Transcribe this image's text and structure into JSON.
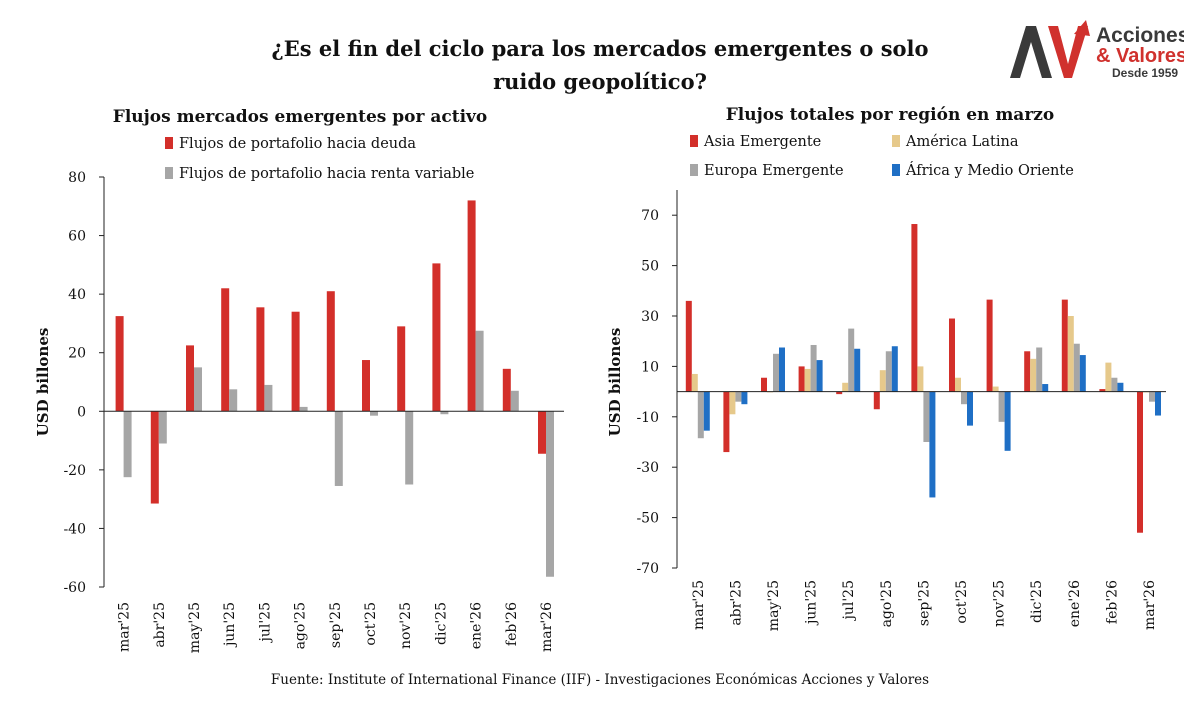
{
  "title": "¿Es el fin del ciclo para los mercados emergentes o solo ruido geopolítico?",
  "title_line1": "¿Es el fin del ciclo para los mercados emergentes o solo",
  "title_line2": "ruido geopolítico?",
  "logo": {
    "initials": "AV",
    "line1": "Acciones",
    "line2": "& Valores",
    "line3": "Desde 1959",
    "colors": {
      "dark": "#3a3a3a",
      "red": "#d0312d"
    }
  },
  "source": "Fuente: Institute of International Finance (IIF) - Investigaciones Económicas Acciones y Valores",
  "chart_data": [
    {
      "type": "bar",
      "title": "Flujos mercados emergentes por activo",
      "ylabel": "USD billones",
      "xlabel": "",
      "ylim": [
        -60,
        80
      ],
      "yticks": [
        80,
        60,
        40,
        20,
        0,
        -20,
        -40,
        -60
      ],
      "ytick_labels": [
        "80",
        "60",
        "40",
        "20",
        "0",
        "-20",
        "-40",
        "-60"
      ],
      "categories": [
        "mar'25",
        "abr'25",
        "may'25",
        "jun'25",
        "jul'25",
        "ago'25",
        "sep'25",
        "oct'25",
        "nov'25",
        "dic'25",
        "ene'26",
        "feb'26",
        "mar'26"
      ],
      "legend_position": "top",
      "grid": false,
      "series": [
        {
          "name": "Flujos de portafolio hacia deuda",
          "color": "#d32f2a",
          "values": [
            32.5,
            -31.5,
            22.5,
            42,
            35.5,
            34,
            41,
            17.5,
            29,
            50.5,
            72,
            14.5,
            -14.5
          ]
        },
        {
          "name": "Flujos de portafolio hacia renta variable",
          "color": "#a6a6a6",
          "values": [
            -22.5,
            -11,
            15,
            7.5,
            9,
            1.5,
            -25.5,
            -1.5,
            -25,
            -1,
            27.5,
            7,
            -56.5
          ]
        }
      ]
    },
    {
      "type": "bar",
      "title": "Flujos totales por región en marzo",
      "ylabel": "USD billones",
      "xlabel": "",
      "ylim": [
        -70,
        80
      ],
      "yticks": [
        70,
        50,
        30,
        10,
        -10,
        -30,
        -50,
        -70
      ],
      "ytick_labels": [
        "70",
        "50",
        "30",
        "10",
        "-10",
        "-30",
        "-50",
        "-70"
      ],
      "categories": [
        "mar'25",
        "abr'25",
        "may'25",
        "jun'25",
        "jul'25",
        "ago'25",
        "sep'25",
        "oct'25",
        "nov'25",
        "dic'25",
        "ene'26",
        "feb'26",
        "mar'26"
      ],
      "legend_position": "top",
      "grid": false,
      "series": [
        {
          "name": "Asia Emergente",
          "color": "#d32f2a",
          "values": [
            36,
            -24,
            5.5,
            10,
            -1,
            -7,
            66.5,
            29,
            36.5,
            16,
            36.5,
            1,
            -56
          ]
        },
        {
          "name": "América Latina",
          "color": "#e6c98b",
          "values": [
            7,
            -9,
            0,
            9,
            3.5,
            8.5,
            10,
            5.5,
            2,
            13,
            30,
            11.5,
            0
          ]
        },
        {
          "name": "Europa Emergente",
          "color": "#a6a6a6",
          "values": [
            -18.5,
            -4,
            15,
            18.5,
            25,
            16,
            -20,
            -5,
            -12,
            17.5,
            19,
            5.5,
            -4
          ]
        },
        {
          "name": "África y Medio Oriente",
          "color": "#1f6fc5",
          "values": [
            -15.5,
            -5,
            17.5,
            12.5,
            17,
            18,
            -42,
            -13.5,
            -23.5,
            3,
            14.5,
            3.5,
            -9.5
          ]
        }
      ]
    }
  ]
}
